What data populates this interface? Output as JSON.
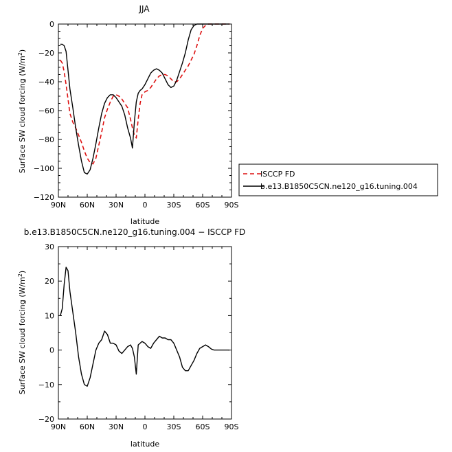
{
  "chart_data": [
    {
      "type": "line",
      "title": "JJA",
      "xlabel": "latitude",
      "ylabel": "Surface SW cloud forcing (W/m",
      "ylabel_sup": "2",
      "ylabel_close": ")",
      "xlim": [
        90,
        -90
      ],
      "ylim": [
        -120,
        0
      ],
      "xticks": [
        90,
        60,
        30,
        0,
        -30,
        -60,
        -90
      ],
      "xtick_labels": [
        "90N",
        "60N",
        "30N",
        "0",
        "30S",
        "60S",
        "90S"
      ],
      "yticks": [
        0,
        -20,
        -40,
        -60,
        -80,
        -100,
        -120
      ],
      "ytick_labels": [
        "0",
        "−20",
        "−40",
        "−60",
        "−80",
        "−100",
        "−120"
      ],
      "legend_position": "right",
      "series": [
        {
          "name": "ISCCP FD",
          "color": "#dd1111",
          "dash": "dashed",
          "points": [
            [
              88,
              -25
            ],
            [
              86,
              -27
            ],
            [
              84,
              -33
            ],
            [
              82,
              -42
            ],
            [
              80,
              -52
            ],
            [
              78,
              -62
            ],
            [
              75,
              -68
            ],
            [
              72,
              -72
            ],
            [
              69,
              -77
            ],
            [
              66,
              -82
            ],
            [
              63,
              -88
            ],
            [
              60,
              -93
            ],
            [
              57,
              -96
            ],
            [
              54,
              -97
            ],
            [
              51,
              -93
            ],
            [
              48,
              -84
            ],
            [
              45,
              -75
            ],
            [
              42,
              -65
            ],
            [
              39,
              -59
            ],
            [
              36,
              -54
            ],
            [
              33,
              -50
            ],
            [
              30,
              -49
            ],
            [
              27,
              -50
            ],
            [
              24,
              -52
            ],
            [
              21,
              -55
            ],
            [
              18,
              -58
            ],
            [
              15,
              -66
            ],
            [
              13,
              -72
            ],
            [
              11,
              -77
            ],
            [
              9,
              -79
            ],
            [
              7,
              -66
            ],
            [
              5,
              -55
            ],
            [
              3,
              -49
            ],
            [
              0,
              -47
            ],
            [
              -3,
              -46
            ],
            [
              -6,
              -44
            ],
            [
              -9,
              -41
            ],
            [
              -12,
              -38
            ],
            [
              -15,
              -36
            ],
            [
              -18,
              -35
            ],
            [
              -21,
              -35
            ],
            [
              -24,
              -36
            ],
            [
              -27,
              -38
            ],
            [
              -30,
              -40
            ],
            [
              -33,
              -40
            ],
            [
              -36,
              -38
            ],
            [
              -39,
              -35
            ],
            [
              -42,
              -32
            ],
            [
              -45,
              -29
            ],
            [
              -48,
              -25
            ],
            [
              -51,
              -21
            ],
            [
              -54,
              -15
            ],
            [
              -57,
              -8
            ],
            [
              -60,
              -3
            ],
            [
              -63,
              -1
            ],
            [
              -66,
              0
            ],
            [
              -72,
              0
            ],
            [
              -80,
              0
            ],
            [
              -88,
              0
            ]
          ]
        },
        {
          "name": "b.e13.B1850C5CN.ne120_g16.tuning.004",
          "color": "#000000",
          "dash": "solid",
          "points": [
            [
              88,
              -14
            ],
            [
              86,
              -14
            ],
            [
              84,
              -15
            ],
            [
              82,
              -19
            ],
            [
              80,
              -32
            ],
            [
              78,
              -45
            ],
            [
              75,
              -58
            ],
            [
              72,
              -72
            ],
            [
              69,
              -84
            ],
            [
              66,
              -95
            ],
            [
              63,
              -103
            ],
            [
              60,
              -104
            ],
            [
              57,
              -101
            ],
            [
              54,
              -93
            ],
            [
              51,
              -83
            ],
            [
              48,
              -72
            ],
            [
              45,
              -62
            ],
            [
              42,
              -55
            ],
            [
              39,
              -51
            ],
            [
              36,
              -49
            ],
            [
              33,
              -49
            ],
            [
              30,
              -51
            ],
            [
              27,
              -54
            ],
            [
              24,
              -57
            ],
            [
              21,
              -63
            ],
            [
              18,
              -72
            ],
            [
              15,
              -79
            ],
            [
              13,
              -86
            ],
            [
              11,
              -68
            ],
            [
              9,
              -54
            ],
            [
              7,
              -48
            ],
            [
              5,
              -46
            ],
            [
              3,
              -45
            ],
            [
              0,
              -42
            ],
            [
              -3,
              -38
            ],
            [
              -6,
              -34
            ],
            [
              -9,
              -32
            ],
            [
              -12,
              -31
            ],
            [
              -15,
              -32
            ],
            [
              -18,
              -34
            ],
            [
              -21,
              -38
            ],
            [
              -24,
              -42
            ],
            [
              -27,
              -44
            ],
            [
              -30,
              -43
            ],
            [
              -33,
              -39
            ],
            [
              -36,
              -33
            ],
            [
              -39,
              -27
            ],
            [
              -42,
              -20
            ],
            [
              -45,
              -11
            ],
            [
              -48,
              -4
            ],
            [
              -51,
              -1
            ],
            [
              -54,
              0
            ],
            [
              -57,
              0
            ],
            [
              -66,
              0
            ],
            [
              -80,
              0
            ],
            [
              -88,
              0
            ]
          ]
        }
      ]
    },
    {
      "type": "line",
      "title": "b.e13.B1850C5CN.ne120_g16.tuning.004 − ISCCP FD",
      "xlabel": "latitude",
      "ylabel": "Surface SW cloud forcing (W/m",
      "ylabel_sup": "2",
      "ylabel_close": ")",
      "xlim": [
        90,
        -90
      ],
      "ylim": [
        -20,
        30
      ],
      "xticks": [
        90,
        60,
        30,
        0,
        -30,
        -60,
        -90
      ],
      "xtick_labels": [
        "90N",
        "60N",
        "30N",
        "0",
        "30S",
        "60S",
        "90S"
      ],
      "yticks": [
        30,
        20,
        10,
        0,
        -10,
        -20
      ],
      "ytick_labels": [
        "30",
        "20",
        "10",
        "0",
        "−10",
        "−20"
      ],
      "series": [
        {
          "color": "#000000",
          "dash": "solid",
          "points": [
            [
              88,
              10
            ],
            [
              86,
              12
            ],
            [
              84,
              19
            ],
            [
              82,
              24
            ],
            [
              80,
              23
            ],
            [
              78,
              17
            ],
            [
              75,
              11
            ],
            [
              72,
              5
            ],
            [
              69,
              -2
            ],
            [
              66,
              -7
            ],
            [
              63,
              -10
            ],
            [
              60,
              -10.5
            ],
            [
              57,
              -8
            ],
            [
              54,
              -4
            ],
            [
              51,
              0
            ],
            [
              48,
              2
            ],
            [
              45,
              3
            ],
            [
              42,
              5.5
            ],
            [
              39,
              4.5
            ],
            [
              36,
              2
            ],
            [
              33,
              2
            ],
            [
              30,
              1.5
            ],
            [
              27,
              -0.3
            ],
            [
              24,
              -1
            ],
            [
              21,
              0
            ],
            [
              18,
              1
            ],
            [
              15,
              1.5
            ],
            [
              13,
              0.5
            ],
            [
              11,
              -2
            ],
            [
              9,
              -7
            ],
            [
              7,
              1.5
            ],
            [
              5,
              2
            ],
            [
              3,
              2.5
            ],
            [
              0,
              2
            ],
            [
              -3,
              1
            ],
            [
              -6,
              0.5
            ],
            [
              -9,
              2
            ],
            [
              -12,
              3
            ],
            [
              -15,
              4
            ],
            [
              -18,
              3.5
            ],
            [
              -21,
              3.5
            ],
            [
              -24,
              3
            ],
            [
              -27,
              3
            ],
            [
              -30,
              2
            ],
            [
              -33,
              0
            ],
            [
              -36,
              -2
            ],
            [
              -39,
              -5
            ],
            [
              -42,
              -6
            ],
            [
              -45,
              -6
            ],
            [
              -48,
              -4.5
            ],
            [
              -51,
              -3
            ],
            [
              -54,
              -1
            ],
            [
              -57,
              0.5
            ],
            [
              -60,
              1
            ],
            [
              -63,
              1.5
            ],
            [
              -66,
              1
            ],
            [
              -69,
              0.3
            ],
            [
              -72,
              0
            ],
            [
              -80,
              0
            ],
            [
              -88,
              0
            ]
          ]
        }
      ]
    }
  ]
}
